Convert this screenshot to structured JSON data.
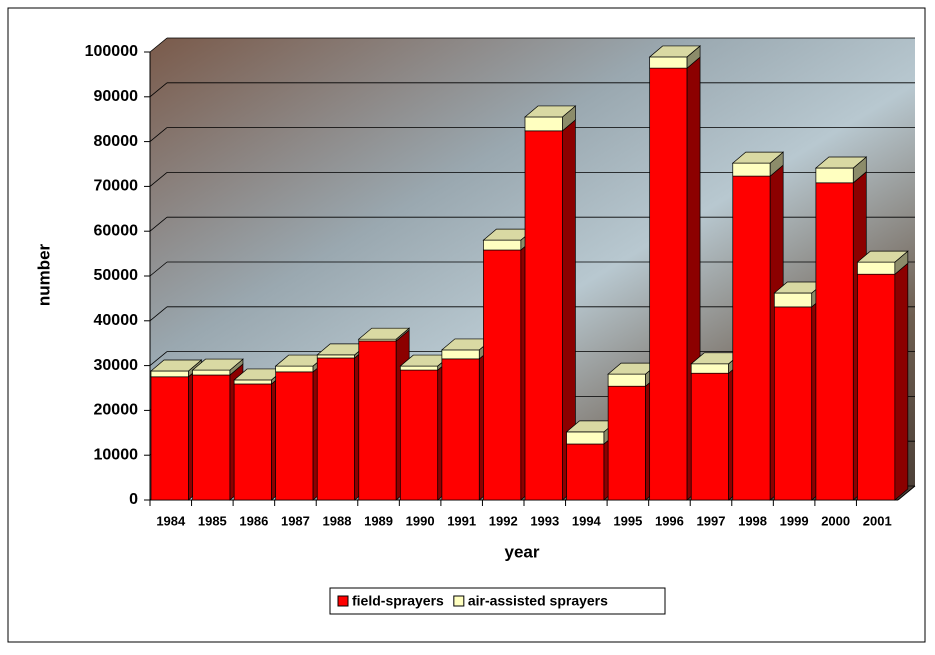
{
  "chart_data": {
    "type": "bar3d_stacked",
    "x_label": "year",
    "y_label": "number",
    "categories": [
      "1984",
      "1985",
      "1986",
      "1987",
      "1988",
      "1989",
      "1990",
      "1991",
      "1992",
      "1993",
      "1994",
      "1995",
      "1996",
      "1997",
      "1998",
      "1999",
      "2000",
      "2001"
    ],
    "series": [
      {
        "name": "field-sprayers",
        "color": "#ff0000",
        "values": [
          27500,
          27900,
          25900,
          28600,
          31700,
          35500,
          29000,
          31500,
          55800,
          82400,
          12500,
          25400,
          96400,
          28300,
          72300,
          43100,
          70800,
          50400
        ]
      },
      {
        "name": "air-assisted sprayers",
        "color": "#ffffc0",
        "values": [
          1300,
          1100,
          900,
          1300,
          700,
          400,
          900,
          2000,
          2200,
          3100,
          2700,
          2700,
          2500,
          2100,
          2900,
          3100,
          3300,
          2700
        ]
      }
    ],
    "ylim": [
      0,
      100000
    ],
    "yticks": [
      0,
      10000,
      20000,
      30000,
      40000,
      50000,
      60000,
      70000,
      80000,
      90000,
      100000
    ],
    "grid": true,
    "legend": "bottom"
  }
}
